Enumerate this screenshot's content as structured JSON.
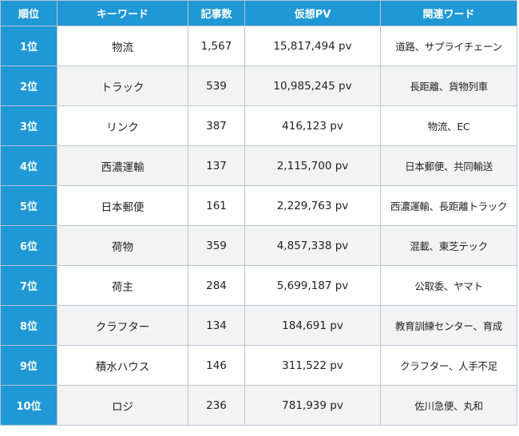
{
  "colors": {
    "header_bg": "#1f98d6",
    "rank_bg": "#1f98d6",
    "stripe_bg": "#f3f3f3",
    "border": "#b9c4d0"
  },
  "table": {
    "headers": [
      "順位",
      "キーワード",
      "記事数",
      "仮想PV",
      "関連ワード"
    ],
    "rows": [
      {
        "rank": "1位",
        "keyword": "物流",
        "articles": "1,567",
        "pv": "15,817,494 pv",
        "related": "道路、サプライチェーン"
      },
      {
        "rank": "2位",
        "keyword": "トラック",
        "articles": "539",
        "pv": "10,985,245 pv",
        "related": "長距離、貨物列車"
      },
      {
        "rank": "3位",
        "keyword": "リンク",
        "articles": "387",
        "pv": "416,123 pv",
        "related": "物流、EC"
      },
      {
        "rank": "4位",
        "keyword": "西濃運輸",
        "articles": "137",
        "pv": "2,115,700 pv",
        "related": "日本郵便、共同輸送"
      },
      {
        "rank": "5位",
        "keyword": "日本郵便",
        "articles": "161",
        "pv": "2,229,763 pv",
        "related": "西濃運輸、長距離トラック"
      },
      {
        "rank": "6位",
        "keyword": "荷物",
        "articles": "359",
        "pv": "4,857,338 pv",
        "related": "混載、東芝テック"
      },
      {
        "rank": "7位",
        "keyword": "荷主",
        "articles": "284",
        "pv": "5,699,187 pv",
        "related": "公取委、ヤマト"
      },
      {
        "rank": "8位",
        "keyword": "クラフター",
        "articles": "134",
        "pv": "184,691 pv",
        "related": "教育訓練センター、育成"
      },
      {
        "rank": "9位",
        "keyword": "積水ハウス",
        "articles": "146",
        "pv": "311,522 pv",
        "related": "クラフター、人手不足"
      },
      {
        "rank": "10位",
        "keyword": "ロジ",
        "articles": "236",
        "pv": "781,939 pv",
        "related": "佐川急便、丸和"
      }
    ]
  }
}
